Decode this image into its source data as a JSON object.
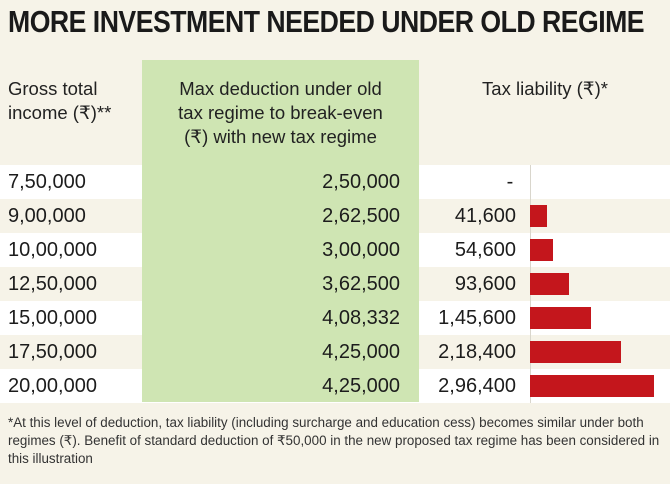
{
  "title": "MORE INVESTMENT NEEDED UNDER OLD REGIME",
  "headers": {
    "income": [
      "Gross total",
      "income (₹)**"
    ],
    "deduction": [
      "Max deduction under old",
      "tax regime to break-even",
      "(₹) with new tax regime"
    ],
    "tax": "Tax liability (₹)*"
  },
  "footnote": "*At this level of deduction, tax liability (including surcharge and education cess) becomes similar under both regimes (₹). Benefit of standard deduction of ₹50,000 in the new proposed tax regime has been considered in this illustration",
  "colors": {
    "bar": "#c4161c",
    "highlight_column": "#cfe5b3",
    "row_band": "#ffffff",
    "background": "#f6f3e8"
  },
  "chart_data": {
    "type": "bar",
    "orientation": "horizontal",
    "title": "MORE INVESTMENT NEEDED UNDER OLD REGIME",
    "rows": [
      {
        "income": "7,50,000",
        "deduction": "2,50,000",
        "tax": "-",
        "tax_value": 0
      },
      {
        "income": "9,00,000",
        "deduction": "2,62,500",
        "tax": "41,600",
        "tax_value": 41600
      },
      {
        "income": "10,00,000",
        "deduction": "3,00,000",
        "tax": "54,600",
        "tax_value": 54600
      },
      {
        "income": "12,50,000",
        "deduction": "3,62,500",
        "tax": "93,600",
        "tax_value": 93600
      },
      {
        "income": "15,00,000",
        "deduction": "4,08,332",
        "tax": "1,45,600",
        "tax_value": 145600
      },
      {
        "income": "17,50,000",
        "deduction": "4,25,000",
        "tax": "2,18,400",
        "tax_value": 218400
      },
      {
        "income": "20,00,000",
        "deduction": "4,25,000",
        "tax": "2,96,400",
        "tax_value": 296400
      }
    ],
    "xlim": [
      0,
      296400
    ]
  }
}
